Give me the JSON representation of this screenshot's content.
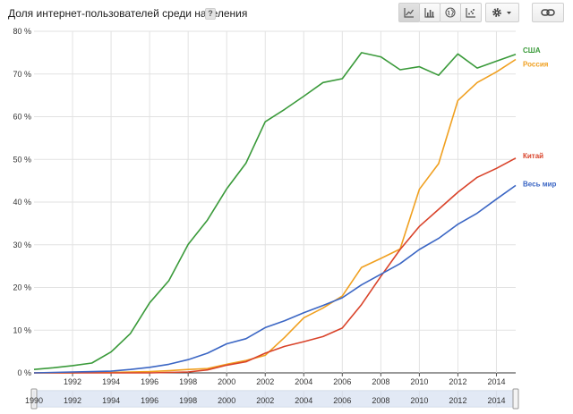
{
  "header": {
    "title": "Доля интернет-пользователей среди населения",
    "help_label": "?"
  },
  "toolbar": {
    "buttons": [
      {
        "name": "line-chart-button",
        "icon": "line-chart-icon",
        "selected": true
      },
      {
        "name": "bar-chart-button",
        "icon": "bar-chart-icon",
        "selected": false
      },
      {
        "name": "map-button",
        "icon": "globe-icon",
        "selected": false
      },
      {
        "name": "scatter-chart-button",
        "icon": "scatter-chart-icon",
        "selected": false
      },
      {
        "name": "settings-button",
        "icon": "gear-icon",
        "selected": false
      },
      {
        "name": "link-button",
        "icon": "link-icon",
        "selected": false
      }
    ]
  },
  "chart_data": {
    "type": "line",
    "title": "Доля интернет-пользователей среди населения",
    "xlabel": "",
    "ylabel": "",
    "xlim": [
      1990,
      2015
    ],
    "ylim": [
      0,
      80
    ],
    "yticks": [
      "0 %",
      "10 %",
      "20 %",
      "30 %",
      "40 %",
      "50 %",
      "60 %",
      "70 %",
      "80 %"
    ],
    "xticks": [
      "1992",
      "1994",
      "1996",
      "1998",
      "2000",
      "2002",
      "2004",
      "2006",
      "2008",
      "2010",
      "2012",
      "2014"
    ],
    "grid": true,
    "legend": "inline-right",
    "x": [
      1990,
      1991,
      1992,
      1993,
      1994,
      1995,
      1996,
      1997,
      1998,
      1999,
      2000,
      2001,
      2002,
      2003,
      2004,
      2005,
      2006,
      2007,
      2008,
      2009,
      2010,
      2011,
      2012,
      2013,
      2014,
      2015
    ],
    "series": [
      {
        "name": "США",
        "color": "#3a9a3a",
        "values": [
          0.8,
          1.2,
          1.7,
          2.3,
          4.9,
          9.2,
          16.4,
          21.6,
          30.1,
          35.8,
          43.1,
          49.1,
          58.8,
          61.7,
          64.8,
          68.0,
          68.9,
          75.0,
          74.0,
          71.0,
          71.7,
          69.7,
          74.7,
          71.4,
          73.0,
          74.6
        ]
      },
      {
        "name": "Россия",
        "color": "#f0a020",
        "values": [
          0,
          0,
          0,
          0.1,
          0.1,
          0.2,
          0.3,
          0.5,
          0.8,
          1.0,
          2.0,
          2.9,
          4.1,
          8.3,
          12.9,
          15.2,
          18.0,
          24.7,
          26.8,
          29.0,
          43.0,
          49.0,
          63.8,
          68.0,
          70.5,
          73.4
        ]
      },
      {
        "name": "Китай",
        "color": "#d9432a",
        "values": [
          0,
          0,
          0,
          0,
          0,
          0,
          0,
          0.1,
          0.2,
          0.7,
          1.8,
          2.6,
          4.6,
          6.2,
          7.3,
          8.5,
          10.5,
          16.0,
          22.6,
          28.9,
          34.3,
          38.3,
          42.3,
          45.8,
          47.9,
          50.3
        ]
      },
      {
        "name": "Весь мир",
        "color": "#3b66c4",
        "values": [
          0,
          0.1,
          0.2,
          0.3,
          0.4,
          0.8,
          1.3,
          2.0,
          3.1,
          4.6,
          6.8,
          8.0,
          10.6,
          12.2,
          14.1,
          15.8,
          17.6,
          20.6,
          23.1,
          25.6,
          28.9,
          31.5,
          34.8,
          37.4,
          40.7,
          43.9
        ]
      }
    ]
  },
  "range_slider": {
    "labels": [
      "1990",
      "1992",
      "1994",
      "1996",
      "1998",
      "2000",
      "2002",
      "2004",
      "2006",
      "2008",
      "2010",
      "2012",
      "2014"
    ],
    "selected_range": [
      1990,
      2015
    ]
  }
}
